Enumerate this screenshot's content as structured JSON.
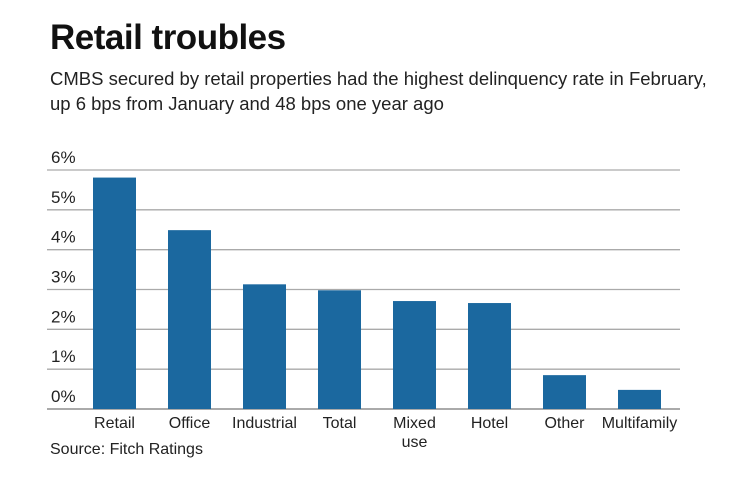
{
  "title": "Retail troubles",
  "subtitle": "CMBS secured by retail properties had the highest delinquency rate in February, up 6 bps from January and 48 bps one year ago",
  "source": "Source: Fitch Ratings",
  "chart_data": {
    "type": "bar",
    "title": "Retail troubles",
    "categories": [
      "Retail",
      "Office",
      "Industrial",
      "Total",
      "Mixed use",
      "Hotel",
      "Other",
      "Multifamily"
    ],
    "values": [
      5.81,
      4.49,
      3.13,
      2.98,
      2.71,
      2.66,
      0.85,
      0.48
    ],
    "unit": "%",
    "ylim": [
      0,
      6
    ],
    "yticks": [
      "0%",
      "1%",
      "2%",
      "3%",
      "4%",
      "5%",
      "6%"
    ],
    "grid": true,
    "bar_color": "#1b689f",
    "xlabel": "",
    "ylabel": ""
  }
}
